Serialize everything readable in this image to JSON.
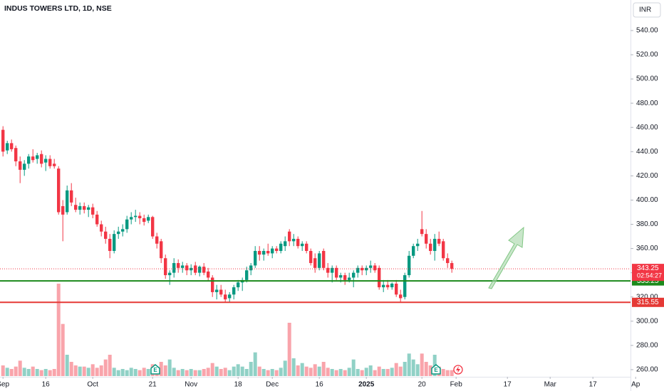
{
  "chart_data": {
    "type": "candlestick",
    "title": "INDUS TOWERS LTD, 1D, NSE",
    "currency": "INR",
    "up_color": "#089981",
    "down_color": "#f23645",
    "grid": false,
    "xlim": [
      -0.7,
      146.8
    ],
    "xticks": [
      {
        "value": 0,
        "label": "Sep"
      },
      {
        "value": 10,
        "label": "16"
      },
      {
        "value": 21,
        "label": "Oct"
      },
      {
        "value": 35,
        "label": "21"
      },
      {
        "value": 44,
        "label": "Nov"
      },
      {
        "value": 55,
        "label": "18"
      },
      {
        "value": 63,
        "label": "Dec"
      },
      {
        "value": 74,
        "label": "16"
      },
      {
        "value": 85,
        "label": "2025"
      },
      {
        "value": 98,
        "label": "20"
      },
      {
        "value": 106,
        "label": "Feb"
      },
      {
        "value": 118,
        "label": "17"
      },
      {
        "value": 128,
        "label": "Mar"
      },
      {
        "value": 138,
        "label": "17"
      },
      {
        "value": 148,
        "label": "Ap"
      }
    ],
    "ylim": [
      254.1,
      565.2
    ],
    "yticks": [
      {
        "value": 260,
        "label": "260.00"
      },
      {
        "value": 280,
        "label": "280.00"
      },
      {
        "value": 300,
        "label": "300.00"
      },
      {
        "value": 320,
        "label": "320.00"
      },
      {
        "value": 340,
        "label": "340.00"
      },
      {
        "value": 360,
        "label": "360.00"
      },
      {
        "value": 380,
        "label": "380.00"
      },
      {
        "value": 400,
        "label": "400.00"
      },
      {
        "value": 420,
        "label": "420.00"
      },
      {
        "value": 440,
        "label": "440.00"
      },
      {
        "value": 460,
        "label": "460.00"
      },
      {
        "value": 480,
        "label": "480.00"
      },
      {
        "value": 500,
        "label": "500.00"
      },
      {
        "value": 520,
        "label": "520.00"
      },
      {
        "value": 540,
        "label": "540.00"
      }
    ],
    "ohlc": [
      [
        458,
        461,
        436,
        440
      ],
      [
        441,
        449,
        438,
        447
      ],
      [
        447,
        450,
        440,
        442
      ],
      [
        443,
        445,
        428,
        432
      ],
      [
        432,
        436,
        414,
        425
      ],
      [
        425,
        433,
        420,
        430
      ],
      [
        430,
        438,
        426,
        436
      ],
      [
        436,
        442,
        431,
        433
      ],
      [
        434,
        439,
        430,
        437
      ],
      [
        438,
        441,
        427,
        430
      ],
      [
        431,
        437,
        424,
        434
      ],
      [
        434,
        437,
        426,
        428
      ],
      [
        430,
        434,
        426,
        428
      ],
      [
        426,
        428,
        388,
        390
      ],
      [
        395,
        400,
        366,
        388
      ],
      [
        390,
        412,
        388,
        408
      ],
      [
        408,
        414,
        395,
        398
      ],
      [
        396,
        402,
        390,
        392
      ],
      [
        392,
        398,
        388,
        395
      ],
      [
        395,
        398,
        389,
        392
      ],
      [
        392,
        396,
        386,
        394
      ],
      [
        394,
        397,
        385,
        388
      ],
      [
        388,
        391,
        378,
        380
      ],
      [
        380,
        383,
        370,
        374
      ],
      [
        374,
        378,
        364,
        368
      ],
      [
        368,
        372,
        352,
        358
      ],
      [
        358,
        375,
        356,
        372
      ],
      [
        372,
        378,
        368,
        374
      ],
      [
        374,
        380,
        370,
        376
      ],
      [
        376,
        387,
        373,
        384
      ],
      [
        384,
        390,
        380,
        386
      ],
      [
        386,
        392,
        382,
        387
      ],
      [
        387,
        390,
        380,
        385
      ],
      [
        385,
        388,
        379,
        382
      ],
      [
        383,
        388,
        381,
        386
      ],
      [
        386,
        387,
        368,
        370
      ],
      [
        370,
        373,
        360,
        364
      ],
      [
        366,
        368,
        348,
        352
      ],
      [
        352,
        355,
        335,
        338
      ],
      [
        338,
        342,
        330,
        340
      ],
      [
        340,
        352,
        336,
        348
      ],
      [
        348,
        351,
        340,
        344
      ],
      [
        344,
        349,
        340,
        346
      ],
      [
        346,
        348,
        338,
        342
      ],
      [
        342,
        347,
        338,
        344
      ],
      [
        346,
        349,
        338,
        340
      ],
      [
        340,
        346,
        337,
        345
      ],
      [
        345,
        348,
        338,
        340
      ],
      [
        341,
        344,
        333,
        336
      ],
      [
        336,
        338,
        320,
        324
      ],
      [
        324,
        330,
        318,
        326
      ],
      [
        326,
        330,
        320,
        322
      ],
      [
        322,
        326,
        316,
        318
      ],
      [
        319,
        324,
        316,
        322
      ],
      [
        322,
        330,
        318,
        328
      ],
      [
        328,
        334,
        325,
        332
      ],
      [
        332,
        336,
        325,
        334
      ],
      [
        334,
        345,
        332,
        342
      ],
      [
        342,
        348,
        338,
        346
      ],
      [
        346,
        362,
        344,
        358
      ],
      [
        358,
        362,
        350,
        355
      ],
      [
        355,
        360,
        350,
        358
      ],
      [
        358,
        364,
        354,
        356
      ],
      [
        356,
        362,
        352,
        360
      ],
      [
        360,
        362,
        356,
        358
      ],
      [
        358,
        366,
        356,
        364
      ],
      [
        362,
        370,
        358,
        366
      ],
      [
        374,
        376,
        362,
        366
      ],
      [
        366,
        372,
        362,
        368
      ],
      [
        368,
        370,
        360,
        362
      ],
      [
        362,
        366,
        358,
        364
      ],
      [
        364,
        366,
        356,
        358
      ],
      [
        358,
        360,
        346,
        348
      ],
      [
        352,
        356,
        340,
        344
      ],
      [
        344,
        358,
        342,
        356
      ],
      [
        358,
        360,
        342,
        344
      ],
      [
        344,
        348,
        336,
        340
      ],
      [
        340,
        346,
        332,
        344
      ],
      [
        344,
        346,
        334,
        336
      ],
      [
        336,
        340,
        332,
        338
      ],
      [
        338,
        340,
        330,
        334
      ],
      [
        334,
        340,
        332,
        336
      ],
      [
        336,
        342,
        328,
        340
      ],
      [
        340,
        346,
        336,
        344
      ],
      [
        344,
        346,
        338,
        342
      ],
      [
        342,
        346,
        338,
        344
      ],
      [
        344,
        350,
        340,
        346
      ],
      [
        346,
        348,
        340,
        342
      ],
      [
        344,
        346,
        326,
        328
      ],
      [
        328,
        334,
        324,
        330
      ],
      [
        330,
        334,
        326,
        328
      ],
      [
        328,
        332,
        326,
        331
      ],
      [
        331,
        334,
        320,
        322
      ],
      [
        322,
        326,
        316,
        319
      ],
      [
        320,
        340,
        318,
        338
      ],
      [
        338,
        358,
        336,
        354
      ],
      [
        354,
        364,
        352,
        362
      ],
      [
        362,
        368,
        358,
        364
      ],
      [
        376,
        391,
        370,
        372
      ],
      [
        372,
        376,
        360,
        364
      ],
      [
        364,
        368,
        355,
        358
      ],
      [
        358,
        372,
        350,
        368
      ],
      [
        368,
        374,
        362,
        364
      ],
      [
        366,
        368,
        350,
        352
      ],
      [
        352,
        356,
        344,
        348
      ],
      [
        348,
        350,
        340,
        343.25
      ]
    ],
    "volume": [
      9,
      7,
      6,
      8,
      13,
      7,
      6,
      8,
      6,
      5,
      6,
      5,
      6,
      78,
      44,
      18,
      12,
      9,
      8,
      8,
      7,
      10,
      7,
      9,
      14,
      18,
      7,
      5,
      6,
      5,
      7,
      6,
      5,
      7,
      6,
      10,
      8,
      12,
      9,
      14,
      7,
      5,
      6,
      5,
      6,
      5,
      5,
      6,
      7,
      11,
      8,
      6,
      7,
      5,
      8,
      10,
      8,
      6,
      12,
      20,
      8,
      6,
      5,
      6,
      5,
      7,
      13,
      45,
      15,
      9,
      11,
      8,
      7,
      10,
      8,
      12,
      7,
      6,
      5,
      6,
      5,
      7,
      14,
      6,
      5,
      7,
      9,
      5,
      8,
      6,
      6,
      7,
      11,
      8,
      12,
      19,
      14,
      10,
      19,
      12,
      9,
      18,
      8,
      6,
      5,
      5
    ],
    "last_price": 343.25,
    "countdown": "02:54:27",
    "hlines": [
      {
        "value": 333.25,
        "color": "#1b8a1b"
      },
      {
        "value": 315.55,
        "color": "#e53935"
      }
    ]
  }
}
